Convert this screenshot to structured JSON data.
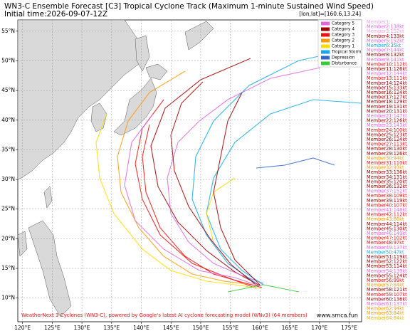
{
  "header": {
    "title": "WN3-C Ensemble Forecast [C3] Tropical Cyclone Track (Maximum 1-minute Sustained Wind Speed)",
    "subtitle": "Initial time:2026-09-07-12Z",
    "position": "[lon,lat]=[160.6,13.24]"
  },
  "map": {
    "xlim": [
      119.2,
      177.1
    ],
    "ylim": [
      6,
      56.9
    ],
    "xticks": [
      {
        "value": 120,
        "label": "120°E"
      },
      {
        "value": 125,
        "label": "125°E"
      },
      {
        "value": 130,
        "label": "130°E"
      },
      {
        "value": 135,
        "label": "135°E"
      },
      {
        "value": 140,
        "label": "140°E"
      },
      {
        "value": 145,
        "label": "145°E"
      },
      {
        "value": 150,
        "label": "150°E"
      },
      {
        "value": 155,
        "label": "155°E"
      },
      {
        "value": 160,
        "label": "160°E"
      },
      {
        "value": 165,
        "label": "165°E"
      },
      {
        "value": 170,
        "label": "170°E"
      },
      {
        "value": 175,
        "label": "175°E"
      }
    ],
    "yticks": [
      {
        "value": 10,
        "label": "10°N"
      },
      {
        "value": 15,
        "label": "15°N"
      },
      {
        "value": 20,
        "label": "20°N"
      },
      {
        "value": 25,
        "label": "25°N"
      },
      {
        "value": 30,
        "label": "30°N"
      },
      {
        "value": 35,
        "label": "35°N"
      },
      {
        "value": 40,
        "label": "40°N"
      },
      {
        "value": 45,
        "label": "45°N"
      },
      {
        "value": 50,
        "label": "50°N"
      },
      {
        "value": 55,
        "label": "55°N"
      }
    ]
  },
  "legend": [
    {
      "label": "Category 5",
      "color": "#e066e0"
    },
    {
      "label": "Category 4",
      "color": "#a00000"
    },
    {
      "label": "Category 3",
      "color": "#ee1111"
    },
    {
      "label": "Category 2",
      "color": "#ff9900"
    },
    {
      "label": "Category 1",
      "color": "#ffdd00"
    },
    {
      "label": "Tropical Storm",
      "color": "#11aaee"
    },
    {
      "label": "Depression",
      "color": "#3366cc"
    },
    {
      "label": "Disturbance",
      "color": "#33cc33"
    }
  ],
  "members": [
    {
      "text": "Member1:",
      "color": "#f0a0f0"
    },
    {
      "text": "Member2:138kt",
      "color": "#e066e0"
    },
    {
      "text": "Member3:152kt",
      "color": "#f0a0f0"
    },
    {
      "text": "Member4:133kt",
      "color": "#a00000"
    },
    {
      "text": "Member5:152kt",
      "color": "#e066e0"
    },
    {
      "text": "Member6:35kt",
      "color": "#11aaee"
    },
    {
      "text": "Member7:144kt",
      "color": "#e066e0"
    },
    {
      "text": "Member8:132kt",
      "color": "#a00000"
    },
    {
      "text": "Member9:141kt",
      "color": "#e066e0"
    },
    {
      "text": "Member10:112kt",
      "color": "#ee1111"
    },
    {
      "text": "Member11:126kt",
      "color": "#a00000"
    },
    {
      "text": "Member12:144kt",
      "color": "#e066e0"
    },
    {
      "text": "Member13:111kt",
      "color": "#ee1111"
    },
    {
      "text": "Member14:124kt",
      "color": "#a00000"
    },
    {
      "text": "Member15:133kt",
      "color": "#a00000"
    },
    {
      "text": "Member16:124kt",
      "color": "#a00000"
    },
    {
      "text": "Member17:127kt",
      "color": "#a00000"
    },
    {
      "text": "Member18:129kt",
      "color": "#a00000"
    },
    {
      "text": "Member19:131kt",
      "color": "#a00000"
    },
    {
      "text": "Member20:131kt",
      "color": "#a00000"
    },
    {
      "text": "Member21:147kt",
      "color": "#e066e0"
    },
    {
      "text": "Member22:126kt",
      "color": "#a00000"
    },
    {
      "text": "Member23:143kt",
      "color": "#e066e0"
    },
    {
      "text": "Member24:100kt",
      "color": "#ee1111"
    },
    {
      "text": "Member25:123kt",
      "color": "#a00000"
    },
    {
      "text": "Member26:124kt",
      "color": "#a00000"
    },
    {
      "text": "Member27:113kt",
      "color": "#ee1111"
    },
    {
      "text": "Member28:130kt",
      "color": "#a00000"
    },
    {
      "text": "Member29:126kt",
      "color": "#a00000"
    },
    {
      "text": "Member30:94kt",
      "color": "#ff9900"
    },
    {
      "text": "Member31:110kt",
      "color": "#ee1111"
    },
    {
      "text": "Member32:93kt",
      "color": "#ff9900"
    },
    {
      "text": "Member33:136kt",
      "color": "#a00000"
    },
    {
      "text": "Member34:131kt",
      "color": "#a00000"
    },
    {
      "text": "Member35:120kt",
      "color": "#a00000"
    },
    {
      "text": "Member36:132kt",
      "color": "#a00000"
    },
    {
      "text": "Member37:152kt",
      "color": "#e066e0"
    },
    {
      "text": "Member38:109kt",
      "color": "#ee1111"
    },
    {
      "text": "Member39:119kt",
      "color": "#a00000"
    },
    {
      "text": "Member40:107kt",
      "color": "#ee1111"
    },
    {
      "text": "Member41:146kt",
      "color": "#e066e0"
    },
    {
      "text": "Member42:112kt",
      "color": "#ee1111"
    },
    {
      "text": "Member43:86kt",
      "color": "#ff9900"
    },
    {
      "text": "Member44:114kt",
      "color": "#a00000"
    },
    {
      "text": "Member45:130kt",
      "color": "#a00000"
    },
    {
      "text": "Member46:149kt",
      "color": "#e066e0"
    },
    {
      "text": "Member47:102kt",
      "color": "#ee1111"
    },
    {
      "text": "Member48:97kt",
      "color": "#ee1111"
    },
    {
      "text": "Member49:137kt",
      "color": "#e066e0"
    },
    {
      "text": "Member50:47kt",
      "color": "#11aaee"
    },
    {
      "text": "Member51:119kt",
      "color": "#a00000"
    },
    {
      "text": "Member52:122kt",
      "color": "#a00000"
    },
    {
      "text": "Member53:114kt",
      "color": "#a00000"
    },
    {
      "text": "Member54:139kt",
      "color": "#e066e0"
    },
    {
      "text": "Member55:124kt",
      "color": "#a00000"
    },
    {
      "text": "Member56:99kt",
      "color": "#ee1111"
    },
    {
      "text": "Member57:84kt",
      "color": "#ff9900"
    },
    {
      "text": "Member58:121kt",
      "color": "#a00000"
    },
    {
      "text": "Member59:107kt",
      "color": "#ee1111"
    },
    {
      "text": "Member60:136kt",
      "color": "#a00000"
    },
    {
      "text": "Member61:137kt",
      "color": "#e066e0"
    },
    {
      "text": "Member62:94kt",
      "color": "#ff9900"
    },
    {
      "text": "Member63:84kt",
      "color": "#ff9900"
    },
    {
      "text": "Member64:84kt",
      "color": "#e8b800"
    }
  ],
  "footer": {
    "credit": "WeatherNext 3 Cyclones (WN3-C), powered by Google's latest AI cyclone forecasting model (WNv3) (64 members)",
    "site": "www.smca.fun"
  }
}
